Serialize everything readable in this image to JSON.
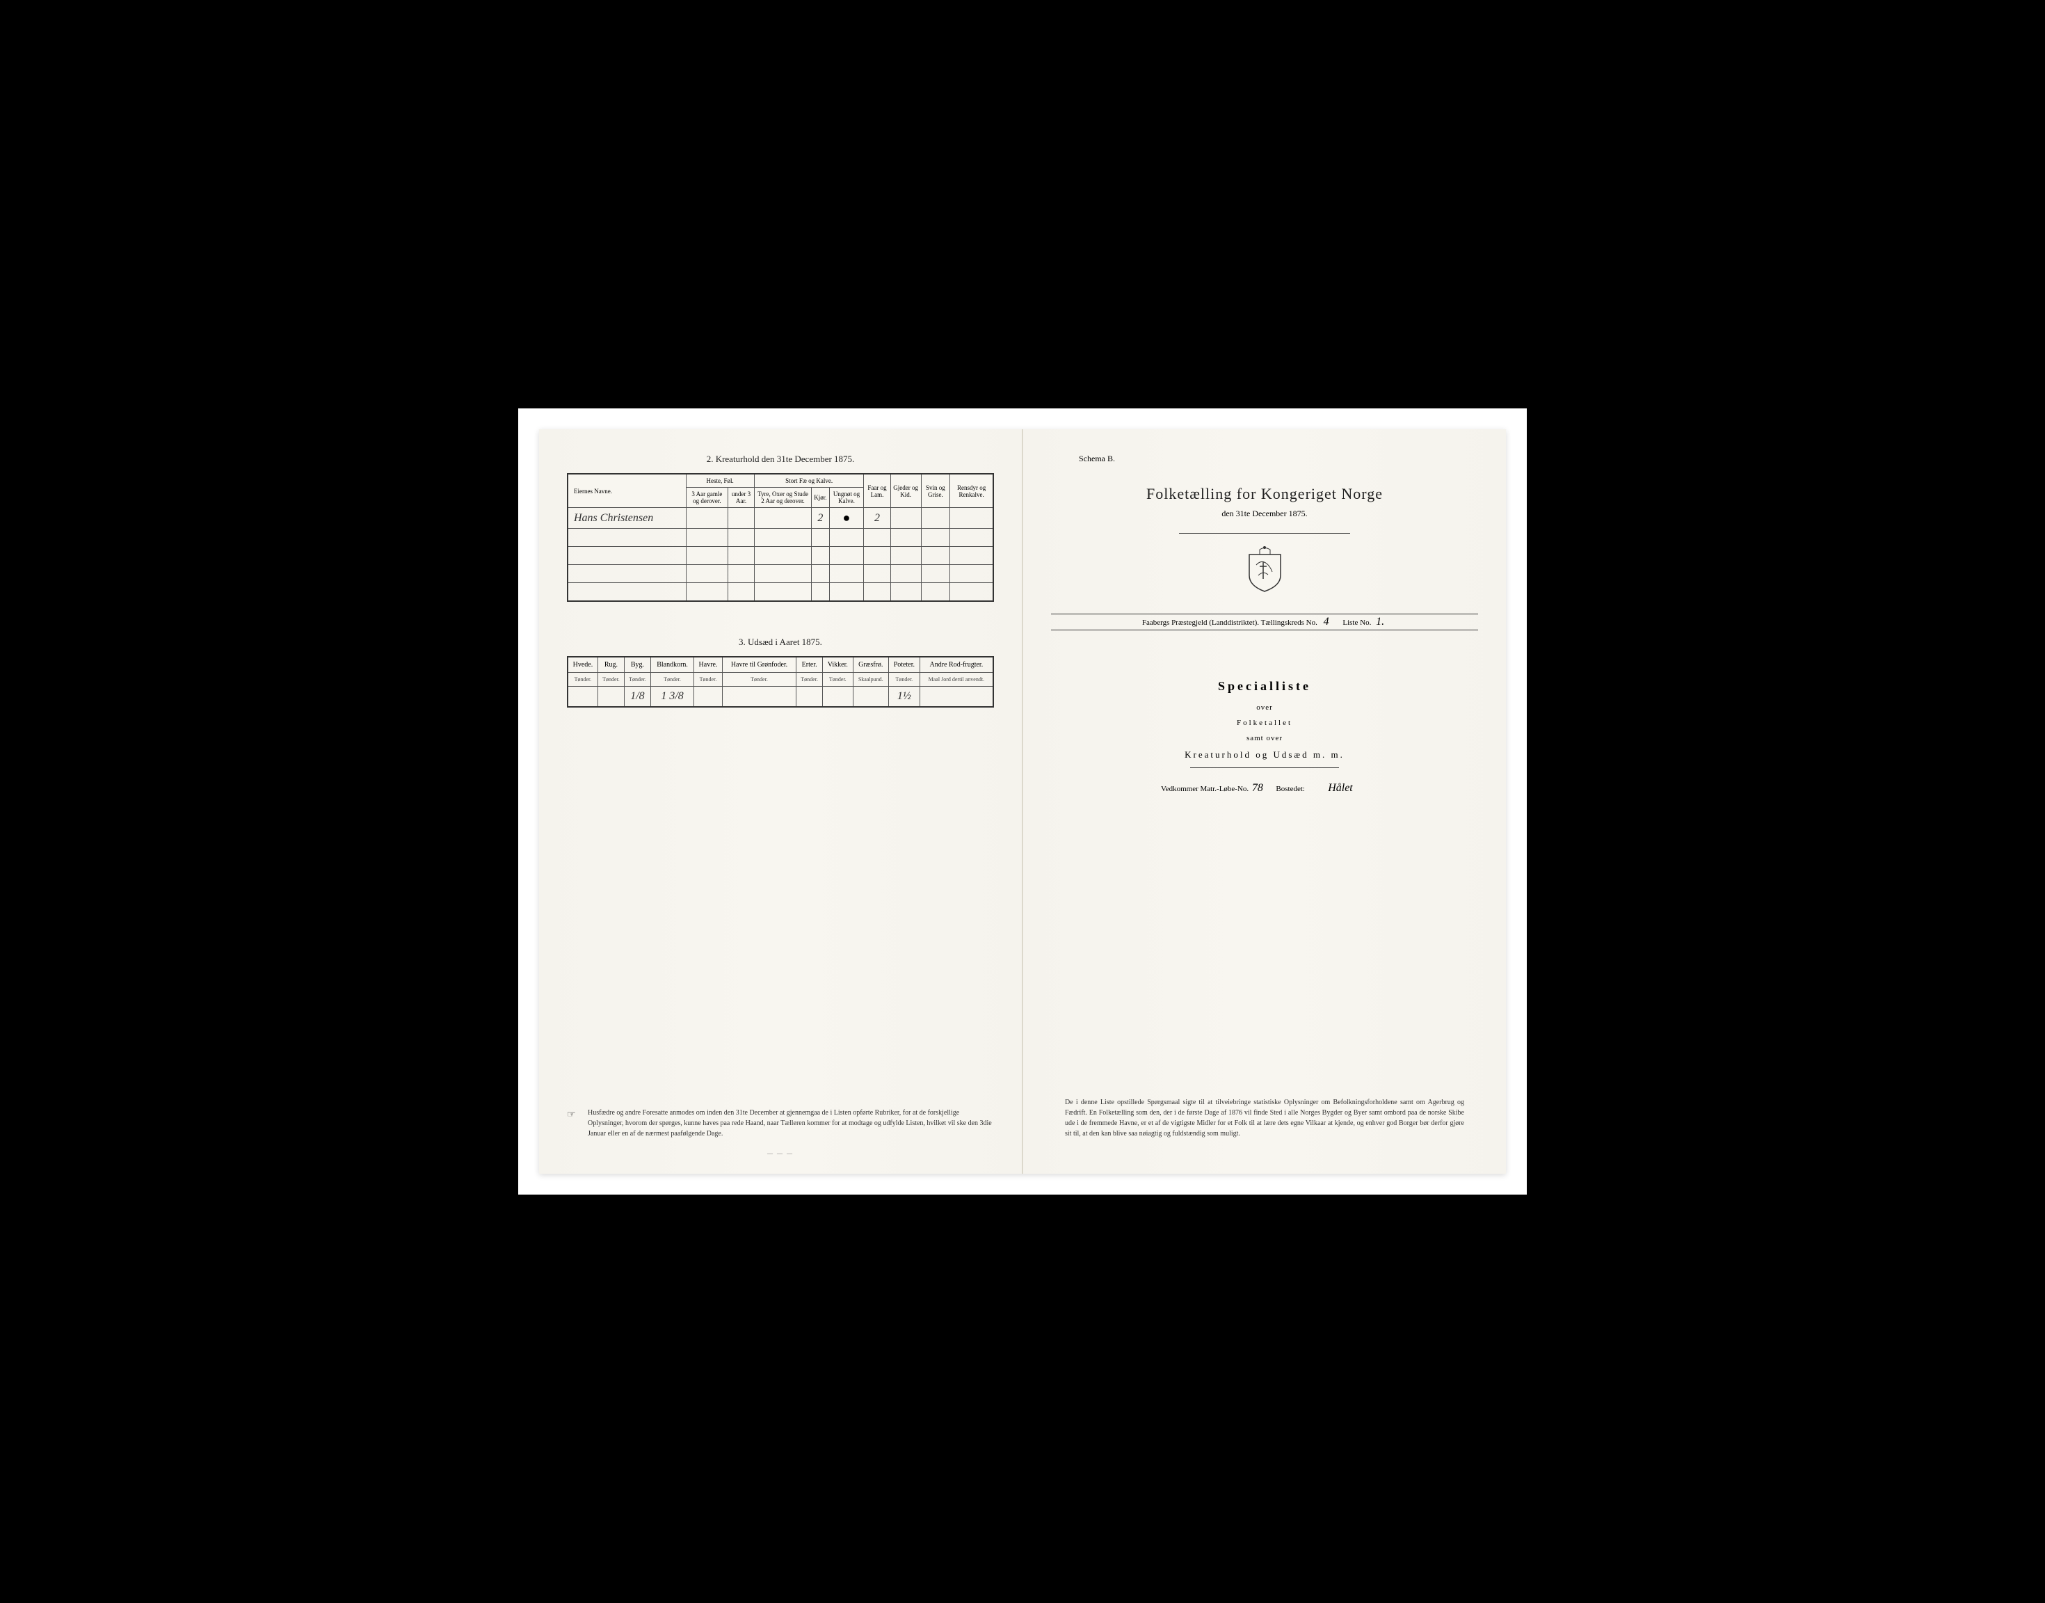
{
  "left_page": {
    "section2": {
      "title": "2.  Kreaturhold den 31te December 1875.",
      "headers": {
        "owner": "Eiernes Navne.",
        "horses": "Heste, Føl.",
        "horses_sub1": "3 Aar gamle og derover.",
        "horses_sub2": "under 3 Aar.",
        "cattle": "Stort Fæ og Kalve.",
        "cattle_sub1": "Tyre, Oxer og Stude 2 Aar og derover.",
        "cattle_sub2": "Kjør.",
        "cattle_sub3": "Ungnøt og Kalve.",
        "sheep": "Faar og Lam.",
        "goats": "Gjeder og Kid.",
        "pigs": "Svin og Grise.",
        "reindeer": "Rensdyr og Renkalve."
      },
      "row": {
        "owner": "Hans Christensen",
        "cattle_sub2": "2",
        "cattle_sub3": "●",
        "sheep": "2"
      }
    },
    "section3": {
      "title": "3.  Udsæd i Aaret 1875.",
      "headers": [
        "Hvede.",
        "Rug.",
        "Byg.",
        "Blandkorn.",
        "Havre.",
        "Havre til Grønfoder.",
        "Erter.",
        "Vikker.",
        "Græsfrø.",
        "Poteter.",
        "Andre Rod-frugter."
      ],
      "subheaders": [
        "Tønder.",
        "Tønder.",
        "Tønder.",
        "Tønder.",
        "Tønder.",
        "Tønder.",
        "Tønder.",
        "Tønder.",
        "Skaalpund.",
        "Tønder.",
        "Maal Jord dertil anvendt."
      ],
      "values": [
        "",
        "",
        "1/8",
        "1 3/8",
        "",
        "",
        "",
        "",
        "",
        "1½",
        ""
      ]
    },
    "footer": "Husfædre og andre Foresatte anmodes om inden den 31te December at gjennemgaa de i Listen opførte Rubriker, for at de forskjellige Oplysninger, hvorom der spørges, kunne haves paa rede Haand, naar Tælleren kommer for at modtage og udfylde Listen, hvilket vil ske den 3die Januar eller en af de nærmest paafølgende Dage."
  },
  "right_page": {
    "schema": "Schema B.",
    "title": "Folketælling for Kongeriget Norge",
    "date": "den 31te December 1875.",
    "district_prefix": "Faabergs Præstegjeld (Landdistriktet).  Tællingskreds No.",
    "kreds_no": "4",
    "liste_label": "Liste No.",
    "liste_no": "1.",
    "specialliste": "Specialliste",
    "over": "over",
    "folketallet": "Folketallet",
    "samt_over": "samt over",
    "kreaturhold": "Kreaturhold og Udsæd m. m.",
    "matr_label": "Vedkommer Matr.-Løbe-No.",
    "matr_no": "78",
    "bostedet_label": "Bostedet:",
    "bostedet": "Hålet",
    "footer": "De i denne Liste opstillede Spørgsmaal sigte til at tilveiebringe statistiske Oplysninger om Befolkningsforholdene samt om Agerbrug og Fædrift. En Folketælling som den, der i de første Dage af 1876 vil finde Sted i alle Norges Bygder og Byer samt ombord paa de norske Skibe ude i de fremmede Havne, er et af de vigtigste Midler for et Folk til at lære dets egne Vilkaar at kjende, og enhver god Borger bør derfor gjøre sit til, at den kan blive saa nøiagtig og fuldstændig som muligt."
  },
  "colors": {
    "page_bg": "#f5f3ed",
    "border": "#333333",
    "text": "#222222"
  }
}
